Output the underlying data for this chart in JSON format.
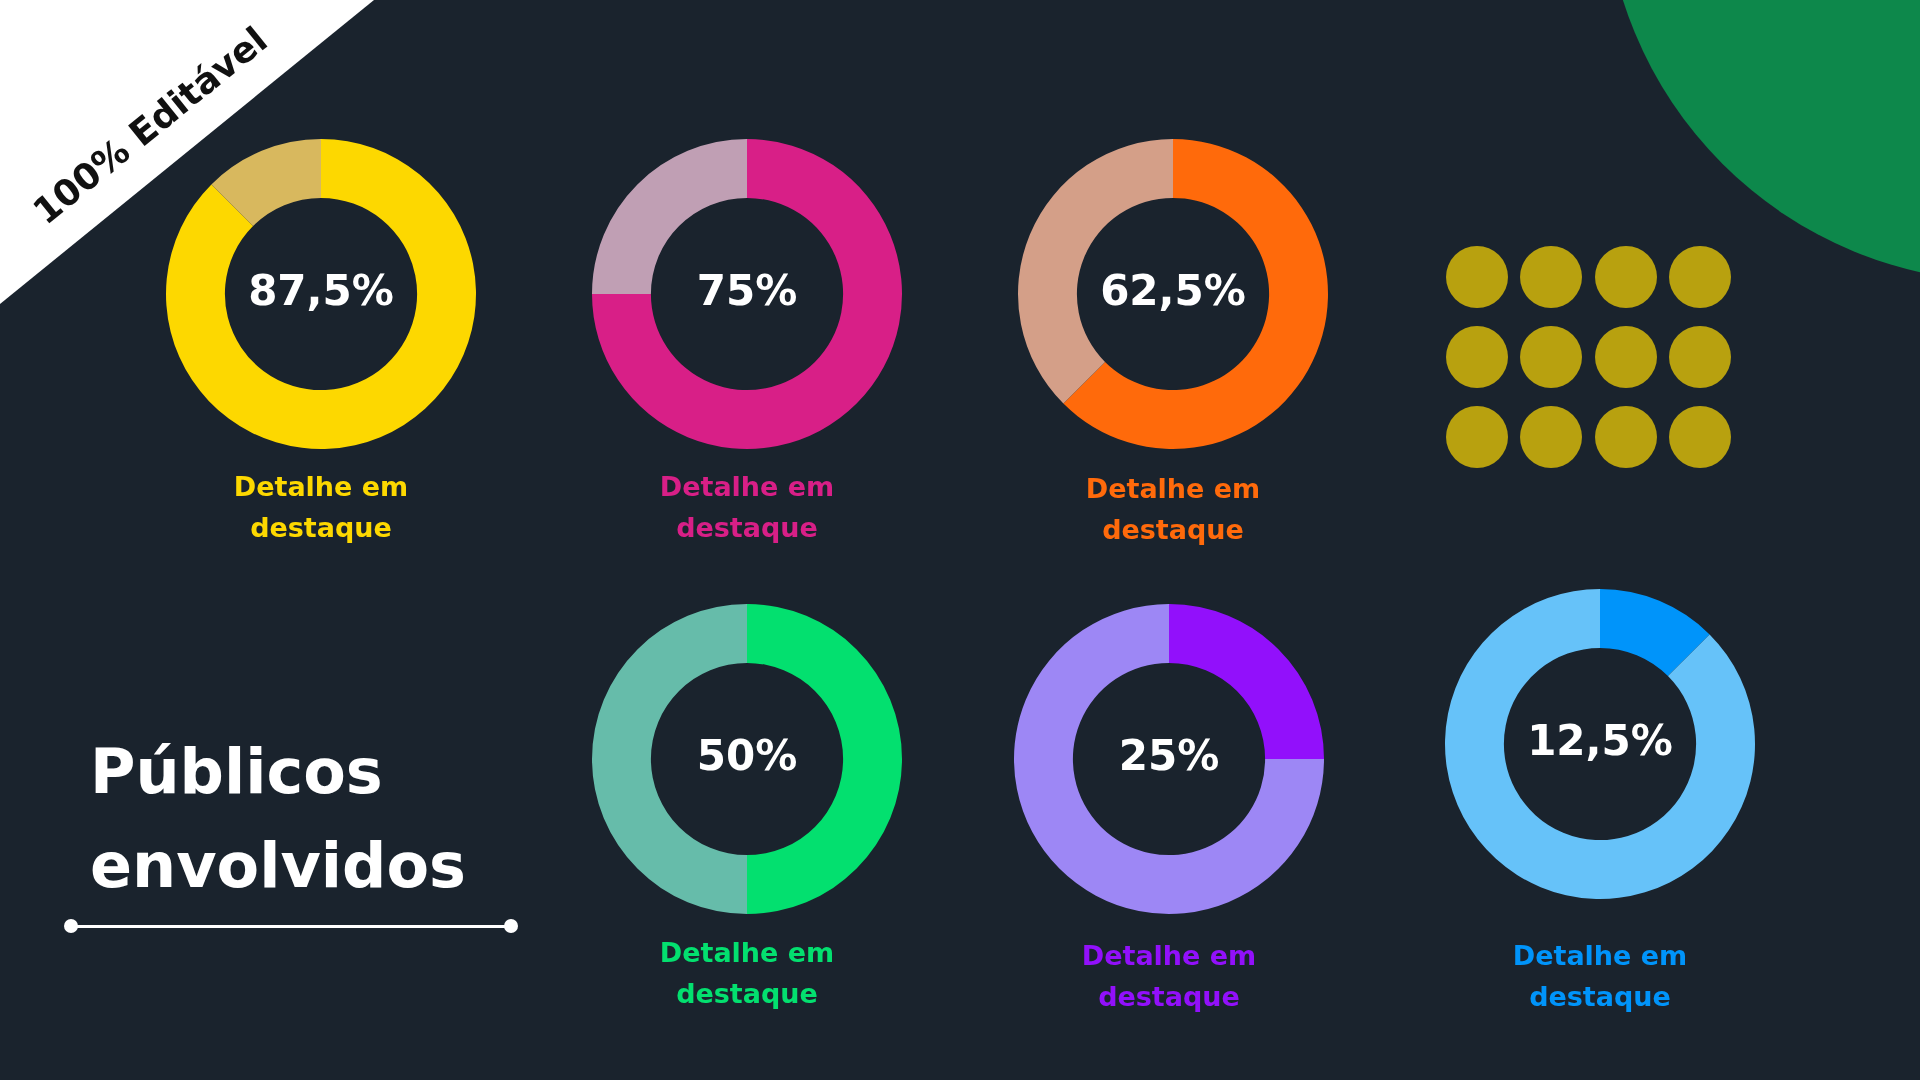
{
  "chart_data": [
    {
      "type": "donut",
      "categories": [
        null,
        null
      ],
      "values": [
        87.5,
        12.5
      ],
      "colors": [
        "#fdd800",
        "#d8b85e"
      ],
      "value_labels": [
        "87,5%",
        null
      ],
      "annotations": [
        "Detalhe em destaque"
      ]
    },
    {
      "type": "donut",
      "categories": [
        null,
        null
      ],
      "values": [
        75,
        25
      ],
      "colors": [
        "#d81f87",
        "#c09fb4"
      ],
      "value_labels": [
        "75%",
        null
      ],
      "annotations": [
        "Detalhe em destaque"
      ]
    },
    {
      "type": "donut",
      "categories": [
        null,
        null
      ],
      "values": [
        62.5,
        37.5
      ],
      "colors": [
        "#ff6a0b",
        "#d49f88"
      ],
      "value_labels": [
        "62,5%",
        null
      ],
      "annotations": [
        "Detalhe em destaque"
      ]
    },
    {
      "type": "donut",
      "categories": [
        null,
        null
      ],
      "values": [
        50,
        50
      ],
      "colors": [
        "#03e06f",
        "#66bcaa"
      ],
      "value_labels": [
        "50%",
        null
      ],
      "annotations": [
        "Detalhe em destaque"
      ]
    },
    {
      "type": "donut",
      "categories": [
        null,
        null
      ],
      "values": [
        25,
        75
      ],
      "colors": [
        "#9210fb",
        "#9d87f5"
      ],
      "value_labels": [
        "25%",
        null
      ],
      "annotations": [
        "Detalhe em destaque"
      ]
    },
    {
      "type": "donut",
      "categories": [
        null,
        null
      ],
      "values": [
        12.5,
        87.5
      ],
      "colors": [
        "#0094fa",
        "#66c2f9"
      ],
      "value_labels": [
        "12,5%",
        null
      ],
      "annotations": [
        "Detalhe em destaque"
      ]
    },
    {
      "type": "other",
      "title": "Públicos envolvidos",
      "annotations": [
        "100% Editável"
      ]
    }
  ]
}
